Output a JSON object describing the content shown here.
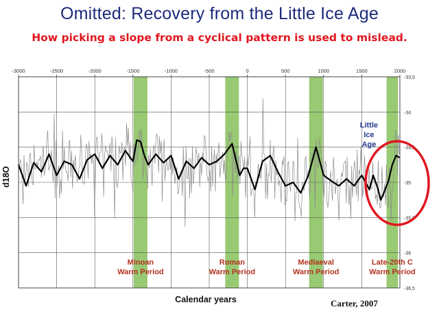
{
  "header": {
    "title": "Omitted:  Recovery from the Little Ice Age",
    "subtitle": "How picking a slope from a cyclical pattern is used to mislead."
  },
  "chart_data": {
    "type": "line",
    "title": "Omitted:  Recovery from the Little Ice Age",
    "subtitle": "How picking a slope from a cyclical pattern is used to mislead.",
    "xlabel": "Calendar years",
    "ylabel": "d18O",
    "xlim": [
      -3000,
      2000
    ],
    "ylim": [
      -36.5,
      -33.5
    ],
    "y_reversed": true,
    "grid": true,
    "x_ticks": [
      -3000,
      -2500,
      -2000,
      -1500,
      -1000,
      -500,
      0,
      500,
      1000,
      1500,
      2000
    ],
    "y_ticks": [
      {
        "value": -33.5,
        "label": "-33,5"
      },
      {
        "value": -34,
        "label": "-34"
      },
      {
        "value": -34.5,
        "label": "-34,5"
      },
      {
        "value": -35,
        "label": "-35"
      },
      {
        "value": -35.5,
        "label": "-35,5"
      },
      {
        "value": -36,
        "label": "-36"
      },
      {
        "value": -36.5,
        "label": "-36,5"
      }
    ],
    "warm_periods": [
      {
        "label_top": "Minoan",
        "label_bottom": "Warm Period",
        "center": -1400,
        "width": 180
      },
      {
        "label_top": "Roman",
        "label_bottom": "Warm Period",
        "center": -200,
        "width": 180
      },
      {
        "label_top": "Mediaeval",
        "label_bottom": "Warm Period",
        "center": 900,
        "width": 180
      },
      {
        "label_top": "Late-20th C",
        "label_bottom": "Warm Period",
        "center": 1900,
        "width": 150
      }
    ],
    "annotation": {
      "lines": [
        "Little",
        "Ice",
        "Age"
      ],
      "x": 1900,
      "y": -34.22
    },
    "highlight_year": 1900,
    "smoothed_series": {
      "name": "",
      "x": [
        -3000,
        -2900,
        -2800,
        -2700,
        -2600,
        -2500,
        -2400,
        -2300,
        -2200,
        -2100,
        -2000,
        -1900,
        -1800,
        -1700,
        -1600,
        -1500,
        -1450,
        -1400,
        -1350,
        -1300,
        -1200,
        -1100,
        -1000,
        -900,
        -800,
        -700,
        -600,
        -500,
        -400,
        -300,
        -200,
        -150,
        -100,
        -50,
        0,
        100,
        200,
        300,
        400,
        500,
        600,
        700,
        800,
        900,
        1000,
        1100,
        1200,
        1300,
        1400,
        1500,
        1600,
        1650,
        1700,
        1750,
        1800,
        1850,
        1900,
        1950,
        2000
      ],
      "y": [
        -34.75,
        -35.05,
        -34.72,
        -34.85,
        -34.6,
        -34.9,
        -34.7,
        -34.75,
        -34.95,
        -34.68,
        -34.6,
        -34.8,
        -34.62,
        -34.75,
        -34.55,
        -34.7,
        -34.4,
        -34.42,
        -34.62,
        -34.75,
        -34.6,
        -34.72,
        -34.62,
        -34.95,
        -34.7,
        -34.8,
        -34.65,
        -34.75,
        -34.7,
        -34.6,
        -34.45,
        -34.68,
        -34.9,
        -34.8,
        -34.8,
        -35.1,
        -34.7,
        -34.62,
        -34.85,
        -35.05,
        -35.0,
        -35.15,
        -34.9,
        -34.5,
        -34.9,
        -34.98,
        -35.05,
        -34.95,
        -35.05,
        -34.9,
        -35.1,
        -34.9,
        -35.05,
        -35.25,
        -35.12,
        -34.98,
        -34.75,
        -34.62,
        -34.65
      ]
    }
  }
}
